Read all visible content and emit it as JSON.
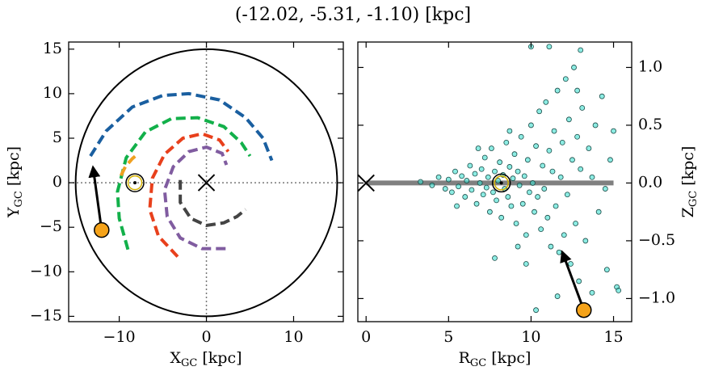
{
  "title": "(-12.02, -5.31, -1.10) [kpc]",
  "chart_data": [
    {
      "type": "line",
      "xlabel": [
        "X",
        "GC",
        " [kpc]"
      ],
      "ylabel": [
        "Y",
        "GC",
        " [kpc]"
      ],
      "xlim": [
        -15.8,
        15.7
      ],
      "ylim": [
        -15.6,
        15.8
      ],
      "xticks": [
        {
          "value": -10,
          "label": "−10"
        },
        0,
        10
      ],
      "yticks": [
        {
          "value": -15,
          "label": "−15"
        },
        {
          "value": -10,
          "label": "−10"
        },
        {
          "value": -5,
          "label": "−5"
        },
        0,
        5,
        10,
        15
      ],
      "yaxis_side": "left",
      "boundary_radius": 15,
      "zero_lines": true,
      "series": [
        {
          "color": "#1a5fa0",
          "x": [
            -13.3,
            -11.5,
            -8.5,
            -5,
            -2,
            1.5,
            4.5,
            6.5,
            7.5
          ],
          "y": [
            3,
            5.8,
            8.5,
            9.8,
            10,
            9.3,
            7.3,
            5,
            2.5
          ]
        },
        {
          "color": "#12b04a",
          "x": [
            -9,
            -10,
            -10.2,
            -9.2,
            -7,
            -4,
            -1,
            2,
            4,
            5
          ],
          "y": [
            -7.5,
            -4,
            -1,
            2.8,
            5.7,
            7.2,
            7.3,
            6.3,
            4.5,
            3
          ]
        },
        {
          "color": "#e8401c",
          "x": [
            -3.3,
            -5.5,
            -6.5,
            -6.2,
            -4.8,
            -2.7,
            -0.5,
            1.5,
            2.5
          ],
          "y": [
            -8.3,
            -6,
            -3,
            0.5,
            3.2,
            5,
            5.5,
            4.8,
            3.5
          ]
        },
        {
          "color": "#805ca0",
          "x": [
            2.2,
            -0.5,
            -3,
            -4.5,
            -4.8,
            -3.8,
            -2,
            0,
            1.8,
            2.3
          ],
          "y": [
            -7.4,
            -7.4,
            -6.2,
            -3.8,
            -0.8,
            1.8,
            3.5,
            4,
            3.3,
            2
          ]
        },
        {
          "color": "#444444",
          "x": [
            -3,
            -3,
            -1.8,
            0,
            2,
            3.5,
            4.5
          ],
          "y": [
            0.3,
            -2.2,
            -4,
            -4.8,
            -4.5,
            -3.8,
            -3
          ]
        },
        {
          "color": "#f0a020",
          "x": [
            -9.8,
            -9.3,
            -8.5,
            -7.8
          ],
          "y": [
            0.8,
            1.8,
            2.7,
            3.3
          ]
        }
      ],
      "gc": {
        "x": 0,
        "y": 0
      },
      "sun": {
        "x": -8.2,
        "y": 0
      },
      "star": {
        "x": -12.02,
        "y": -5.31,
        "color": "#f5a31a"
      },
      "arrow": {
        "x": [
          -12.02,
          -13.0
        ],
        "y": [
          -5.31,
          1.7
        ]
      }
    },
    {
      "type": "scatter",
      "xlabel": [
        "R",
        "GC",
        " [kpc]"
      ],
      "ylabel": [
        "Z",
        "GC",
        " [kpc]"
      ],
      "xlim": [
        -0.5,
        16.1
      ],
      "ylim": [
        -1.2,
        1.22
      ],
      "xticks": [
        0,
        5,
        10,
        15
      ],
      "yticks": [
        {
          "value": -1.0,
          "label": "−1.0"
        },
        {
          "value": -0.5,
          "label": "−0.5"
        },
        {
          "value": 0.0,
          "label": "0.0"
        },
        {
          "value": 0.5,
          "label": "0.5"
        },
        {
          "value": 1.0,
          "label": "1.0"
        }
      ],
      "yaxis_side": "right",
      "color": "#40e0d0",
      "plane": {
        "x": [
          0,
          15
        ],
        "y": [
          0,
          0
        ],
        "color": "#808080"
      },
      "x": [
        3.3,
        4.0,
        4.4,
        4.8,
        5.0,
        5.2,
        5.4,
        5.6,
        5.8,
        6.0,
        6.1,
        6.3,
        6.4,
        6.6,
        6.7,
        6.9,
        7.0,
        7.1,
        7.2,
        7.3,
        7.4,
        7.5,
        7.6,
        7.7,
        7.8,
        7.9,
        8.0,
        8.1,
        8.2,
        8.3,
        8.4,
        8.5,
        8.6,
        8.7,
        8.8,
        8.9,
        9.0,
        9.1,
        9.2,
        9.3,
        9.4,
        9.5,
        9.6,
        9.7,
        9.8,
        9.9,
        10.0,
        10.1,
        10.2,
        10.3,
        10.4,
        10.5,
        10.6,
        10.7,
        10.8,
        10.9,
        11.0,
        11.1,
        11.2,
        11.3,
        11.4,
        11.5,
        11.6,
        11.7,
        11.8,
        11.9,
        12.0,
        12.1,
        12.2,
        12.3,
        12.4,
        12.5,
        12.6,
        12.7,
        12.8,
        12.9,
        13.0,
        13.1,
        13.3,
        13.5,
        13.7,
        13.9,
        14.1,
        14.3,
        14.6,
        15.0,
        15.2,
        15.3,
        10.0,
        11.1,
        13.0,
        9.2,
        7.8,
        9.7,
        12.8,
        8.7,
        10.3,
        11.6,
        6.8,
        5.5,
        14.8,
        13.7,
        14.5
      ],
      "y": [
        0.01,
        -0.02,
        0.05,
        -0.05,
        0.03,
        -0.08,
        0.1,
        -0.03,
        0.06,
        -0.12,
        0.02,
        0.15,
        -0.06,
        0.08,
        -0.18,
        0.0,
        0.12,
        -0.1,
        0.22,
        -0.04,
        0.05,
        -0.25,
        0.3,
        -0.08,
        0.1,
        -0.15,
        0.02,
        0.18,
        -0.3,
        0.07,
        -0.05,
        0.35,
        -0.12,
        0.14,
        -0.2,
        0.04,
        0.25,
        -0.35,
        0.1,
        -0.02,
        0.4,
        -0.18,
        0.06,
        -0.45,
        0.2,
        -0.08,
        0.5,
        0.0,
        -0.25,
        0.32,
        -0.12,
        0.62,
        -0.4,
        0.15,
        -0.05,
        0.7,
        -0.3,
        0.28,
        -0.55,
        0.1,
        0.45,
        -0.2,
        0.8,
        -0.6,
        0.05,
        0.35,
        -0.45,
        0.9,
        -0.1,
        0.55,
        -0.7,
        0.2,
        1.0,
        -0.35,
        0.4,
        -0.85,
        0.12,
        0.65,
        -0.5,
        0.3,
        -0.95,
        0.5,
        -0.25,
        0.75,
        -0.75,
        0.45,
        -0.9,
        -0.93,
        1.18,
        1.18,
        1.15,
        -0.55,
        -0.65,
        -0.7,
        0.8,
        0.45,
        -1.1,
        -0.98,
        0.3,
        -0.2,
        0.2,
        0.05,
        -0.05
      ],
      "gc": {
        "x": 0,
        "y": 0
      },
      "sun": {
        "x": 8.2,
        "y": 0
      },
      "star": {
        "x": 13.2,
        "y": -1.1,
        "color": "#f5a31a"
      },
      "arrow": {
        "x": [
          13.2,
          11.9
        ],
        "y": [
          -1.1,
          -0.6
        ]
      }
    }
  ]
}
